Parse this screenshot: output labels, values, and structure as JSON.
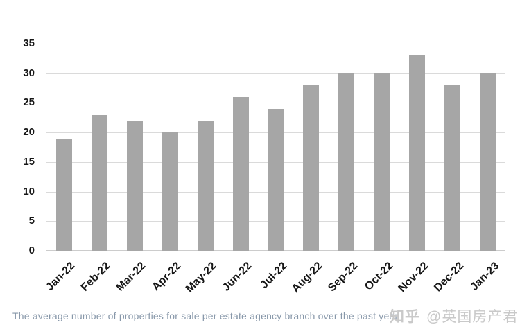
{
  "chart_data": {
    "type": "bar",
    "categories": [
      "Jan-22",
      "Feb-22",
      "Mar-22",
      "Apr-22",
      "May-22",
      "Jun-22",
      "Jul-22",
      "Aug-22",
      "Sep-22",
      "Oct-22",
      "Nov-22",
      "Dec-22",
      "Jan-23"
    ],
    "values": [
      19,
      23,
      22,
      20,
      22,
      26,
      24,
      28,
      30,
      30,
      33,
      28,
      30
    ],
    "title": "The average number of properties for sale per estate agency branch over the past year",
    "xlabel": "",
    "ylabel": "",
    "ylim": [
      0,
      35
    ],
    "ytick_step": 5,
    "yticks": [
      0,
      5,
      10,
      15,
      20,
      25,
      30,
      35
    ],
    "grid": true,
    "legend": "none",
    "bar_color": "#a6a6a6",
    "gridline_color": "#dadada",
    "axis_line_color": "#cccccc"
  },
  "caption": {
    "color": "#8797a9"
  },
  "watermark": {
    "logo": "知乎",
    "handle": "@英国房产君",
    "color": "#c9c9c9"
  }
}
